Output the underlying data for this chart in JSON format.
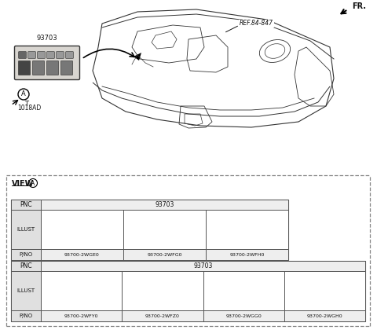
{
  "background_color": "#ffffff",
  "fr_label": "FR.",
  "ref_label": "REF.84-847",
  "part_label_93703": "93703",
  "screw_label": "1018AD",
  "circle_label": "A",
  "row1_pnc": "93703",
  "row1_parts": [
    "93700-2WGE0",
    "93700-2WFG0",
    "93700-2WFH0"
  ],
  "row1_nbots": [
    2,
    2,
    3
  ],
  "row2_pnc": "93703",
  "row2_parts": [
    "93700-2WFY0",
    "93700-2WFZ0",
    "93700-2WGG0",
    "93700-2WGH0"
  ],
  "row2_nbots": [
    2,
    3,
    3,
    3
  ],
  "text_color": "#111111",
  "border_color": "#555555",
  "dashed_color": "#888888",
  "header_bg": "#eeeeee",
  "label_col_bg": "#e0e0e0",
  "sw_panel_fill": "#d8d5d0",
  "sw_btn_dark": "#555555",
  "sw_btn_light": "#aaaaaa",
  "illust_bg": "#dedad4",
  "illust_edge": "#333333"
}
